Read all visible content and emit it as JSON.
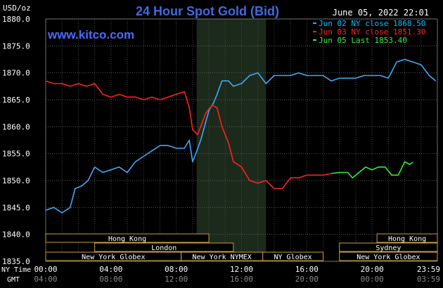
{
  "chart_data": {
    "type": "line",
    "title": "24 Hour Spot Gold (Bid)",
    "ylabel": "USD/oz",
    "watermark": "www.kitco.com",
    "timestamp": "June 05, 2022 22:01",
    "ylim": [
      1835,
      1880
    ],
    "y_ticks": [
      1835.0,
      1840.0,
      1845.0,
      1850.0,
      1855.0,
      1860.0,
      1865.0,
      1870.0,
      1875.0,
      1880.0
    ],
    "x_axis": {
      "ny_label": "NY Time",
      "gmt_label": "GMT",
      "ny_ticks": [
        "00:00",
        "04:00",
        "08:00",
        "12:00",
        "16:00",
        "20:00",
        "23:59"
      ],
      "gmt_ticks": [
        "04:00",
        "08:00",
        "12:00",
        "16:00",
        "20:00",
        "00:00",
        "03:59"
      ],
      "hours": [
        0,
        4,
        8,
        12,
        16,
        20,
        23.983
      ]
    },
    "xlim_hours": [
      0,
      24
    ],
    "grid": true,
    "shaded_session_hours": [
      9.25,
      13.5
    ],
    "legend": [
      {
        "label": "Jun 02 NY close 1868.50",
        "color": "#00bfff"
      },
      {
        "label": "Jun 03 NY close 1851.30",
        "color": "#ff2020"
      },
      {
        "label": "Jun 05 Last 1853.40",
        "color": "#33ee33"
      }
    ],
    "series": [
      {
        "name": "Jun 02",
        "color": "#3fa9f5",
        "x": [
          0,
          0.5,
          1.0,
          1.5,
          1.8,
          2.2,
          2.6,
          3.0,
          3.5,
          4.0,
          4.5,
          5.0,
          5.5,
          6.0,
          6.5,
          7.0,
          7.5,
          8.0,
          8.5,
          8.8,
          9.0,
          9.2,
          9.5,
          10.0,
          10.3,
          10.5,
          10.8,
          11.2,
          11.5,
          12.0,
          12.5,
          13.0,
          13.5,
          14.0,
          14.5,
          15.0,
          15.5,
          16.0,
          16.5,
          17.0,
          17.5,
          18.0,
          18.5,
          19.0,
          19.5,
          20.0,
          20.5,
          21.0,
          21.5,
          22.0,
          22.5,
          23.0,
          23.5,
          23.9
        ],
        "y": [
          1844.5,
          1845.0,
          1844.0,
          1845.0,
          1848.5,
          1849.0,
          1850.0,
          1852.5,
          1851.5,
          1852.0,
          1852.5,
          1851.5,
          1853.5,
          1854.5,
          1855.5,
          1856.5,
          1856.5,
          1856.0,
          1856.0,
          1857.5,
          1853.5,
          1855.0,
          1857.5,
          1863.0,
          1864.5,
          1866.0,
          1868.5,
          1868.5,
          1867.5,
          1868.0,
          1869.5,
          1870.0,
          1868.0,
          1869.5,
          1869.5,
          1869.5,
          1870.0,
          1869.5,
          1869.5,
          1869.5,
          1868.5,
          1869.0,
          1869.0,
          1869.0,
          1869.5,
          1869.5,
          1869.5,
          1869.0,
          1872.0,
          1872.5,
          1872.0,
          1871.5,
          1869.5,
          1868.5
        ]
      },
      {
        "name": "Jun 03",
        "color": "#ff2020",
        "x": [
          0,
          0.5,
          1.0,
          1.5,
          2.0,
          2.5,
          3.0,
          3.5,
          4.0,
          4.5,
          5.0,
          5.5,
          6.0,
          6.5,
          7.0,
          7.5,
          8.0,
          8.5,
          8.8,
          9.0,
          9.3,
          9.5,
          9.8,
          10.2,
          10.5,
          10.8,
          11.2,
          11.5,
          12.0,
          12.5,
          13.0,
          13.5,
          14.0,
          14.5,
          15.0,
          15.5,
          16.0,
          16.5,
          17.0,
          17.5
        ],
        "y": [
          1868.5,
          1868.0,
          1868.0,
          1867.5,
          1868.0,
          1867.5,
          1868.0,
          1866.0,
          1865.5,
          1866.0,
          1865.5,
          1865.5,
          1865.0,
          1865.5,
          1865.0,
          1865.5,
          1866.0,
          1866.5,
          1863.5,
          1859.5,
          1858.5,
          1860.0,
          1862.5,
          1864.0,
          1863.5,
          1860.0,
          1857.0,
          1853.5,
          1852.5,
          1850.0,
          1849.5,
          1850.0,
          1848.5,
          1848.5,
          1850.5,
          1850.5,
          1851.0,
          1851.0,
          1851.0,
          1851.3
        ]
      },
      {
        "name": "Jun 05",
        "color": "#33ee33",
        "x": [
          17.5,
          18.0,
          18.5,
          18.8,
          19.2,
          19.6,
          20.0,
          20.4,
          20.8,
          21.2,
          21.6,
          22.0,
          22.3,
          22.5
        ],
        "y": [
          1851.3,
          1851.5,
          1851.5,
          1850.5,
          1851.5,
          1852.5,
          1852.0,
          1852.5,
          1852.5,
          1851.0,
          1851.0,
          1853.5,
          1853.0,
          1853.4
        ]
      }
    ],
    "sessions": [
      {
        "label": "Hong Kong",
        "start": 0,
        "end": 10.0,
        "row": 0
      },
      {
        "label": "Hong Kong",
        "start": 20.3,
        "end": 24.0,
        "row": 0
      },
      {
        "label": "London",
        "start": 3.0,
        "end": 11.5,
        "row": 1
      },
      {
        "label": "Sydney",
        "start": 18.0,
        "end": 24.0,
        "row": 1
      },
      {
        "label": "New York Globex",
        "start": 0,
        "end": 8.3,
        "row": 2
      },
      {
        "label": "New York NYMEX",
        "start": 8.3,
        "end": 13.3,
        "row": 2
      },
      {
        "label": "NY Globex",
        "start": 13.3,
        "end": 17.0,
        "row": 2
      },
      {
        "label": "New York Globex",
        "start": 18.0,
        "end": 24.0,
        "row": 2
      }
    ]
  }
}
